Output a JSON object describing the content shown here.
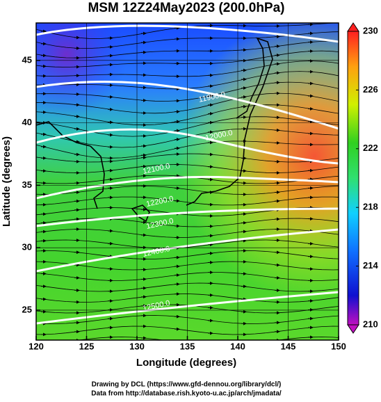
{
  "chart_data": {
    "type": "map",
    "title": "MSM 12Z24May2023 (200.0hPa)",
    "x_label": "Longitude (degrees)",
    "y_label": "Latitude  (degrees)",
    "xlim": [
      120,
      150
    ],
    "xticks": [
      120,
      125,
      130,
      135,
      140,
      145,
      150
    ],
    "ylim": [
      22.6,
      48
    ],
    "yticks": [
      25,
      30,
      35,
      40,
      45
    ],
    "colorbar": {
      "lim": [
        210,
        230
      ],
      "ticks": [
        210,
        214,
        218,
        222,
        226,
        230
      ]
    },
    "contour_labels": [
      "11900.0",
      "12000.0",
      "12100.0",
      "12200.0",
      "12300.0",
      "12400.0",
      "12500.0"
    ]
  },
  "footer": {
    "line1": "Drawing by DCL (https://www.gfd-dennou.org/library/dcl/)",
    "line2": "Data from http://database.rish.kyoto-u.ac.jp/arch/jmadata/"
  }
}
